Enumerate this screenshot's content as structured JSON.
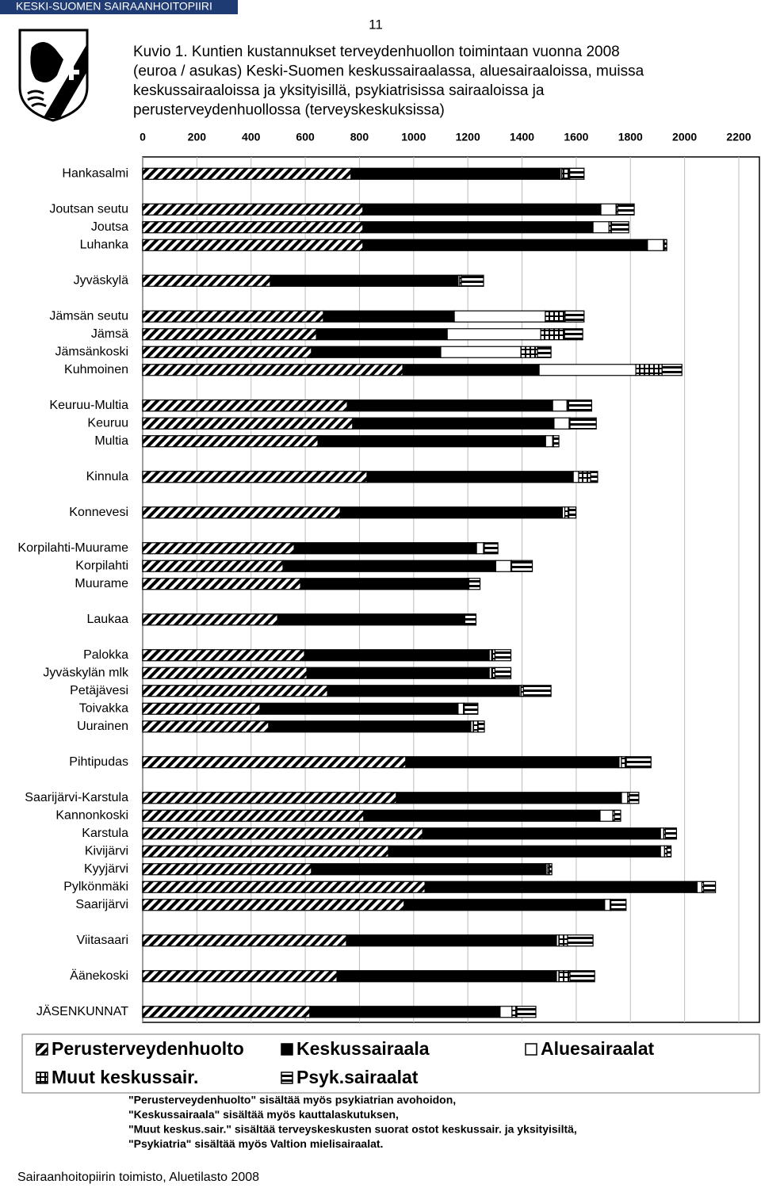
{
  "header": {
    "organization": "KESKI-SUOMEN SAIRAANHOITOPIIRI",
    "page_number": "11"
  },
  "chart_data": {
    "type": "stacked-bar-horizontal",
    "title": [
      "Kuvio 1. Kuntien kustannukset terveydenhuollon toimintaan vuonna 2008",
      "(euroa / asukas) Keski-Suomen keskussairaalassa, aluesairaaloissa, muissa",
      "keskussairaaloissa ja yksityisillä, psykiatrisissa sairaaloissa ja",
      "perusterveydenhuollossa (terveyskeskuksissa)"
    ],
    "categories": [
      "Hankasalmi",
      null,
      "Joutsan seutu",
      "Joutsa",
      "Luhanka",
      null,
      "Jyväskylä",
      null,
      "Jämsän seutu",
      "Jämsä",
      "Jämsänkoski",
      "Kuhmoinen",
      null,
      "Keuruu-Multia",
      "Keuruu",
      "Multia",
      null,
      "Kinnula",
      null,
      "Konnevesi",
      null,
      "Korpilahti-Muurame",
      "Korpilahti",
      "Muurame",
      null,
      "Laukaa",
      null,
      "Palokka",
      "Jyväskylän mlk",
      "Petäjävesi",
      "Toivakka",
      "Uurainen",
      null,
      "Pihtipudas",
      null,
      "Saarijärvi-Karstula",
      "Kannonkoski",
      "Karstula",
      "Kivijärvi",
      "Kyyjärvi",
      "Pylkönmäki",
      "Saarijärvi",
      null,
      "Viitasaari",
      null,
      "Äänekoski",
      null,
      "JÄSENKUNNAT"
    ],
    "series": [
      {
        "name": "Perusterveydenhuolto",
        "color": "#000000",
        "pattern": "diagonal",
        "values": [
          769,
          null,
          813,
          813,
          813,
          null,
          471,
          null,
          667,
          641,
          623,
          960,
          null,
          755,
          775,
          647,
          null,
          828,
          null,
          729,
          null,
          559,
          518,
          583,
          null,
          498,
          null,
          597,
          606,
          682,
          433,
          465,
          null,
          971,
          null,
          936,
          816,
          1033,
          907,
          623,
          1042,
          965,
          null,
          752,
          null,
          717,
          null,
          617
        ]
      },
      {
        "name": "Keskussairaala",
        "color": "#000000",
        "pattern": "solid",
        "values": [
          772,
          null,
          878,
          849,
          1050,
          null,
          693,
          null,
          483,
          483,
          477,
          503,
          null,
          758,
          743,
          840,
          null,
          761,
          null,
          820,
          null,
          673,
          785,
          615,
          null,
          691,
          null,
          682,
          673,
          708,
          731,
          746,
          null,
          787,
          null,
          831,
          872,
          878,
          1004,
          866,
          1004,
          740,
          null,
          775,
          null,
          810,
          null,
          702
        ]
      },
      {
        "name": "Aluesairaalat",
        "color": "#000000",
        "pattern": "empty",
        "values": [
          6,
          null,
          56,
          59,
          59,
          null,
          6,
          null,
          336,
          345,
          296,
          357,
          null,
          53,
          56,
          26,
          null,
          20,
          null,
          9,
          null,
          26,
          56,
          3,
          null,
          0,
          null,
          9,
          9,
          6,
          20,
          9,
          null,
          9,
          null,
          23,
          47,
          12,
          15,
          6,
          18,
          20,
          null,
          9,
          null,
          9,
          null,
          44
        ]
      },
      {
        "name": "Muut keskussair.",
        "color": "#000000",
        "pattern": "grid",
        "values": [
          29,
          null,
          6,
          9,
          3,
          null,
          6,
          null,
          73,
          88,
          61,
          97,
          null,
          6,
          3,
          3,
          null,
          44,
          null,
          15,
          null,
          3,
          3,
          3,
          null,
          0,
          null,
          12,
          12,
          9,
          3,
          18,
          null,
          18,
          null,
          6,
          6,
          6,
          9,
          6,
          6,
          3,
          null,
          32,
          null,
          41,
          null,
          18
        ]
      },
      {
        "name": "Psyk.sairaalat",
        "color": "#000000",
        "pattern": "stripes",
        "values": [
          53,
          null,
          61,
          64,
          9,
          null,
          82,
          null,
          70,
          67,
          50,
          73,
          null,
          85,
          97,
          20,
          null,
          26,
          null,
          26,
          null,
          50,
          76,
          41,
          null,
          41,
          null,
          59,
          59,
          102,
          50,
          23,
          null,
          91,
          null,
          35,
          23,
          41,
          15,
          9,
          44,
          56,
          null,
          94,
          null,
          91,
          null,
          70
        ]
      }
    ],
    "xlim": [
      0,
      2200
    ],
    "xticks": [
      0,
      200,
      400,
      600,
      800,
      1000,
      1200,
      1400,
      1600,
      1800,
      2000,
      2200
    ],
    "grid": true,
    "legend": "bottom",
    "notes": [
      "\"Perusterveydenhuolto\" sisältää myös psykiatrian avohoidon,",
      "\"Keskussairaala\" sisältää myös kauttalaskutuksen,",
      "\"Muut keskus.sair.\" sisältää terveyskeskusten suorat ostot keskussair. ja yksityisiltä,",
      "\"Psykiatria\" sisältää myös Valtion mielisairaalat."
    ]
  },
  "footer": "Sairaanhoitopiirin toimisto, Aluetilasto 2008"
}
